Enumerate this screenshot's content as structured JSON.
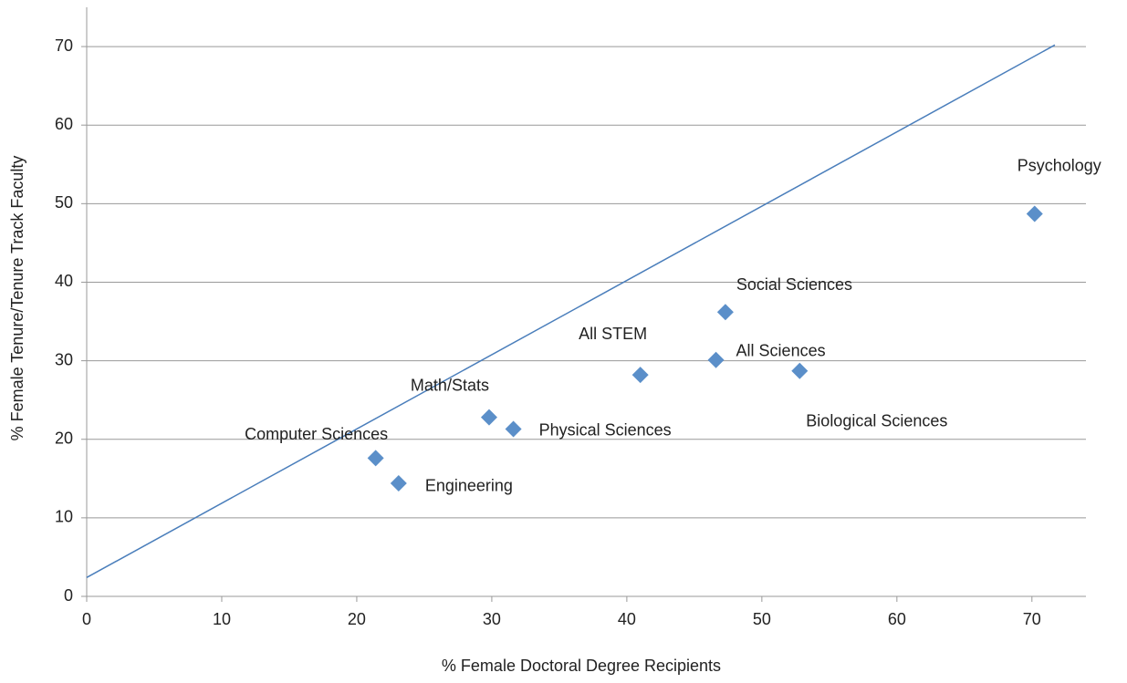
{
  "chart_data": {
    "type": "scatter",
    "x_label": "% Female Doctoral Degree Recipients",
    "y_label": "% Female Tenure/Tenure Track Faculty",
    "labels": [
      "Computer Sciences",
      "Engineering",
      "Math/Stats",
      "Physical Sciences",
      "All STEM",
      "All  Sciences",
      "Social Sciences",
      "Biological Sciences",
      "Psychology"
    ],
    "x": [
      21.4,
      23.1,
      29.8,
      31.6,
      41.0,
      46.6,
      47.3,
      52.8,
      70.2
    ],
    "values": [
      17.6,
      14.4,
      22.8,
      21.3,
      28.2,
      30.1,
      36.2,
      28.7,
      48.7
    ],
    "color": "#5b8fc9",
    "trendline": {
      "x": [
        0,
        71.7
      ],
      "values": [
        2.4,
        70.2
      ],
      "color": "#4a7ebb"
    },
    "xlim": [
      0,
      74
    ],
    "ylim": [
      0,
      75
    ],
    "xticks": [
      0,
      10,
      20,
      30,
      40,
      50,
      60,
      70
    ],
    "yticks": [
      0,
      10,
      20,
      30,
      40,
      50,
      60,
      70
    ],
    "grid": true
  }
}
